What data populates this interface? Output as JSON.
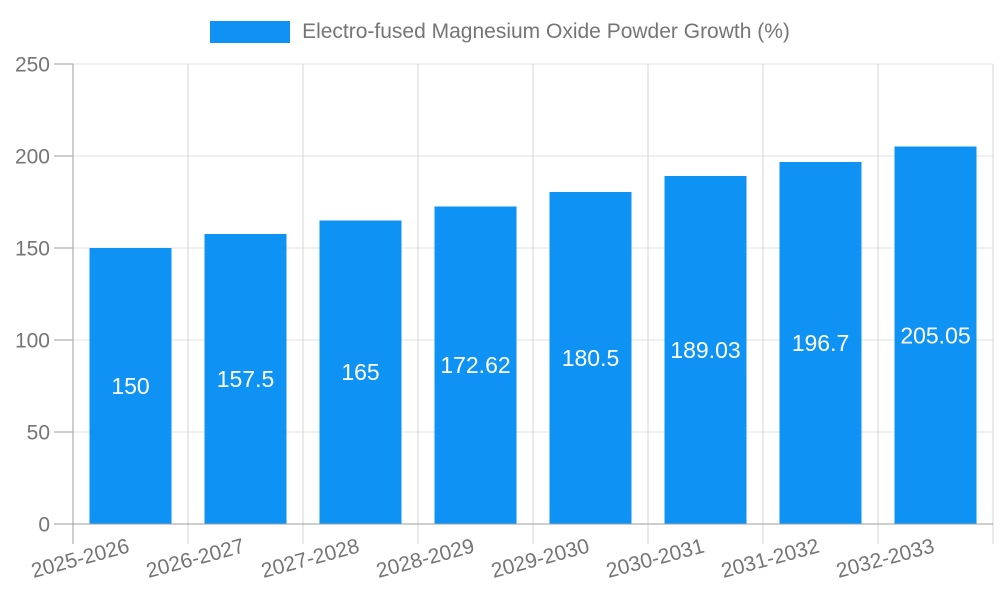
{
  "legend": {
    "label": "Electro-fused Magnesium Oxide Powder Growth (%)"
  },
  "chart_data": {
    "type": "bar",
    "title": "Electro-fused Magnesium Oxide Powder Growth (%)",
    "series_name": "Electro-fused Magnesium Oxide Powder Growth (%)",
    "categories": [
      "2025-2026",
      "2026-2027",
      "2027-2028",
      "2028-2029",
      "2029-2030",
      "2030-2031",
      "2031-2032",
      "2032-2033"
    ],
    "values": [
      150,
      157.5,
      165,
      172.62,
      180.5,
      189.03,
      196.7,
      205.05
    ],
    "value_labels": [
      "150",
      "157.5",
      "165",
      "172.62",
      "180.5",
      "189.03",
      "196.7",
      "205.05"
    ],
    "xlabel": "",
    "ylabel": "",
    "ylim": [
      0,
      250
    ],
    "yticks": [
      0,
      50,
      100,
      150,
      200,
      250
    ],
    "grid": true,
    "legend_position": "top",
    "x_label_rotation_deg": -15,
    "colors": {
      "bar": "#0e92f4",
      "axis": "#9e9e9e",
      "gridline": "#e0e0e0",
      "band_line": "#d4d4d4",
      "tick_label": "#757575",
      "value_label": "#ffffff"
    }
  }
}
